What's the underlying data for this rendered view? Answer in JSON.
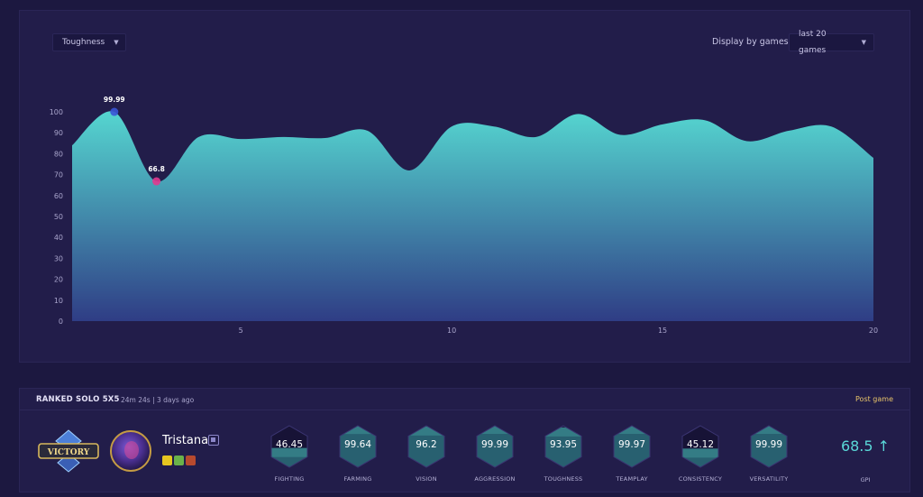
{
  "chart_panel": {
    "metric_dropdown": {
      "label": "Toughness"
    },
    "display_label": "Display by games:",
    "games_dropdown": {
      "label": "last 20 games"
    }
  },
  "chart_data": {
    "type": "area",
    "title": "",
    "xlabel": "",
    "ylabel": "",
    "x": [
      0.95,
      2,
      3,
      4,
      5,
      6,
      7,
      8,
      9,
      10,
      11,
      12,
      13,
      14,
      15,
      16,
      17,
      18,
      19,
      20
    ],
    "values": [
      84,
      99.99,
      66.8,
      88,
      87,
      88,
      87.5,
      91,
      72,
      93,
      93,
      88,
      99,
      89,
      94,
      96,
      86,
      91,
      93,
      78
    ],
    "ylim": [
      0,
      100
    ],
    "yticks": [
      0,
      10,
      20,
      30,
      40,
      50,
      60,
      70,
      80,
      90,
      100
    ],
    "xlim": [
      1,
      20
    ],
    "xticks": [
      5,
      10,
      15,
      20
    ],
    "grid": false,
    "highlights": [
      {
        "x": 2,
        "y": 99.99,
        "label": "99.99",
        "color": "#3a57d6"
      },
      {
        "x": 3,
        "y": 66.8,
        "label": "66.8",
        "color": "#e23a8f"
      }
    ],
    "colors": {
      "area_top": "#55d6d0",
      "area_bottom": "#2f3d85"
    }
  },
  "game": {
    "queue": "RANKED SOLO 5X5",
    "meta": "24m 24s | 3 days ago",
    "post_game": "Post game",
    "champion": "Tristana",
    "result_badge_icon": "victory-badge",
    "stats": [
      {
        "value": "46.45",
        "label": "FIGHTING",
        "level": 0.4645
      },
      {
        "value": "99.64",
        "label": "FARMING",
        "level": 0.9964
      },
      {
        "value": "96.2",
        "label": "VISION",
        "level": 0.962
      },
      {
        "value": "99.99",
        "label": "AGGRESSION",
        "level": 0.9999
      },
      {
        "value": "93.95",
        "label": "TOUGHNESS",
        "level": 0.9395
      },
      {
        "value": "99.97",
        "label": "TEAMPLAY",
        "level": 0.9997
      },
      {
        "value": "45.12",
        "label": "CONSISTENCY",
        "level": 0.4512
      },
      {
        "value": "99.99",
        "label": "VERSATILITY",
        "level": 0.9999
      }
    ],
    "gpi": {
      "value": "68.5 ↑",
      "label": "GPI"
    }
  }
}
